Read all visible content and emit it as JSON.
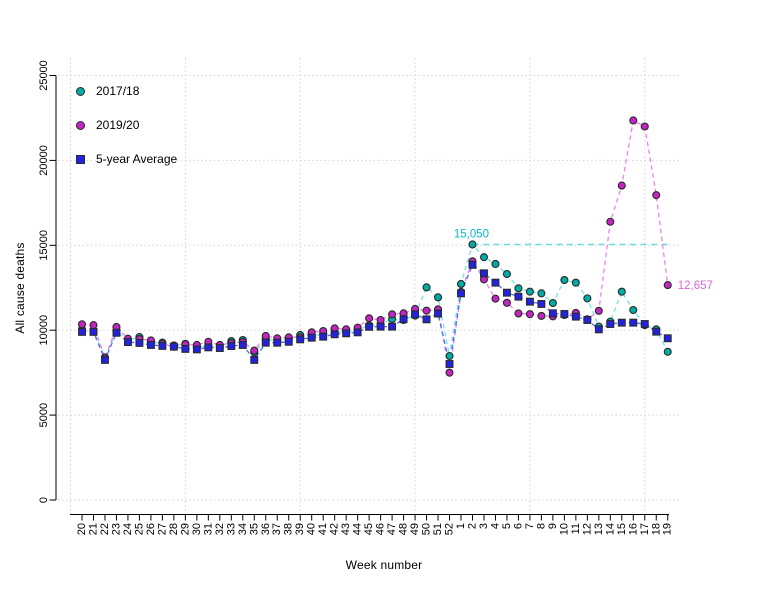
{
  "chart_data": {
    "type": "line",
    "title": "",
    "xlabel": "Week number",
    "ylabel": "All cause deaths",
    "ylim": [
      0,
      25000
    ],
    "yticks": [
      0,
      5000,
      10000,
      15000,
      20000,
      25000
    ],
    "grid": "dotted",
    "grid_x_values": [
      0,
      10,
      20,
      30,
      40,
      50
    ],
    "legend_position": "top-left-inside",
    "categories": [
      "20",
      "21",
      "22",
      "23",
      "24",
      "25",
      "26",
      "27",
      "28",
      "29",
      "30",
      "31",
      "32",
      "33",
      "34",
      "35",
      "36",
      "37",
      "38",
      "39",
      "40",
      "41",
      "42",
      "43",
      "44",
      "45",
      "46",
      "47",
      "48",
      "49",
      "50",
      "51",
      "52",
      "1",
      "2",
      "3",
      "4",
      "5",
      "6",
      "7",
      "8",
      "9",
      "10",
      "11",
      "12",
      "13",
      "14",
      "15",
      "16",
      "17",
      "18",
      "19"
    ],
    "series": [
      {
        "name": "2017/18",
        "marker": "circle",
        "marker_color": "#00ACA4",
        "line_color": "#72E4E9",
        "line_style": "dashed",
        "values": [
          10050,
          9950,
          8400,
          9950,
          9400,
          9600,
          9250,
          9270,
          9100,
          9200,
          8990,
          9070,
          9000,
          9360,
          9420,
          8700,
          9460,
          9380,
          9460,
          9720,
          9680,
          9760,
          9875,
          9915,
          10010,
          10280,
          10350,
          10660,
          10600,
          10855,
          12525,
          11935,
          8480,
          12723,
          15050,
          14300,
          13900,
          13310,
          12465,
          12270,
          12170,
          11600,
          12955,
          12800,
          11875,
          10210,
          10505,
          12270,
          11190,
          10300,
          10050,
          8730
        ]
      },
      {
        "name": "2019/20",
        "marker": "circle",
        "marker_color": "#C225C2",
        "line_color": "#EC84EC",
        "line_style": "dashed",
        "values": [
          10350,
          10300,
          8350,
          10190,
          9500,
          9480,
          9400,
          9200,
          9030,
          9165,
          9130,
          9320,
          9130,
          9240,
          9300,
          8800,
          9660,
          9520,
          9580,
          9580,
          9875,
          9950,
          10110,
          10050,
          10150,
          10700,
          10600,
          10935,
          10995,
          11250,
          11150,
          11230,
          7500,
          12254,
          14058,
          12990,
          11856,
          11612,
          10986,
          10944,
          10841,
          10816,
          10895,
          11019,
          10645,
          11141,
          16387,
          18516,
          22351,
          21997,
          17953,
          12657
        ]
      },
      {
        "name": "5-year Average",
        "marker": "square",
        "marker_color": "#2323DF",
        "line_color": "#4E6FE8",
        "line_style": "dashed",
        "values": [
          9900,
          9900,
          8250,
          9850,
          9300,
          9250,
          9130,
          9075,
          9030,
          8900,
          8870,
          8990,
          8950,
          9070,
          9130,
          8250,
          9265,
          9265,
          9320,
          9460,
          9560,
          9620,
          9760,
          9815,
          9875,
          10200,
          10210,
          10210,
          10650,
          10935,
          10640,
          10980,
          8010,
          12170,
          13850,
          13350,
          12800,
          12210,
          11975,
          11680,
          11545,
          10995,
          10955,
          10800,
          10600,
          10050,
          10365,
          10445,
          10445,
          10365,
          9915,
          9525
        ]
      }
    ],
    "annotations": [
      {
        "text": "15,050",
        "value": 15050,
        "week": "2",
        "series": "2017/18",
        "color": "#00BCCE"
      },
      {
        "text": "12,657",
        "value": 12657,
        "week": "19",
        "series": "2019/20",
        "color": "#D966D9"
      }
    ],
    "reference_line": {
      "value": 15050,
      "from_week": "2",
      "to_week": "19",
      "color": "#63DCE6",
      "style": "dashed"
    }
  }
}
